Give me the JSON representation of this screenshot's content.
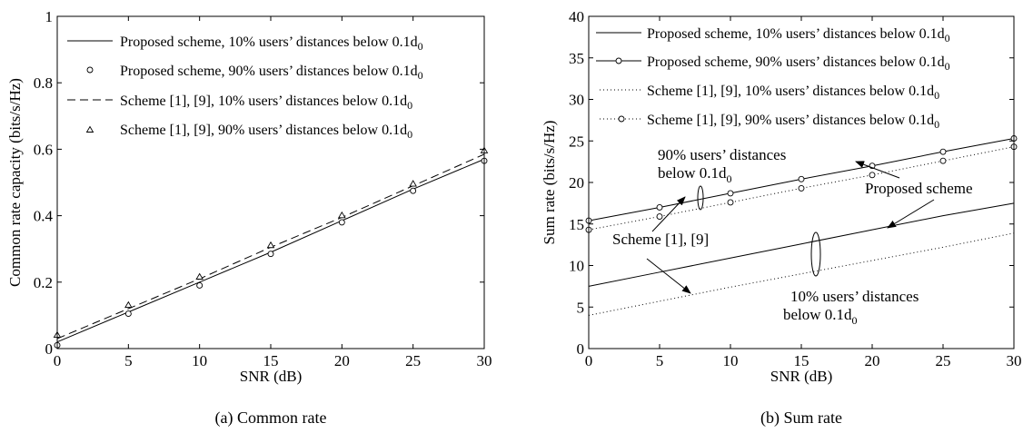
{
  "chart_data": [
    {
      "type": "line",
      "caption": "(a)  Common rate",
      "xlabel": "SNR (dB)",
      "ylabel": "Common rate capacity (bits/s/Hz)",
      "xlim": [
        0,
        30
      ],
      "ylim": [
        0,
        1
      ],
      "xticks": [
        0,
        5,
        10,
        15,
        20,
        25,
        30
      ],
      "yticks": [
        0,
        0.2,
        0.4,
        0.6,
        0.8,
        1
      ],
      "ytick_labels": [
        "0",
        "0.2",
        "0.4",
        "0.6",
        "0.8",
        "1"
      ],
      "grid": false,
      "legend_position": "top-left",
      "x": [
        0,
        5,
        10,
        15,
        20,
        25,
        30
      ],
      "series": [
        {
          "name": "Proposed scheme, 10% users’ distances below 0.1d",
          "sub": "0",
          "style": "solid",
          "marker": "none",
          "values": [
            0.02,
            0.11,
            0.2,
            0.29,
            0.385,
            0.48,
            0.57
          ]
        },
        {
          "name": "Proposed scheme, 90% users’ distances below 0.1d",
          "sub": "0",
          "style": "none",
          "marker": "circle",
          "values": [
            0.01,
            0.105,
            0.19,
            0.285,
            0.38,
            0.475,
            0.565
          ]
        },
        {
          "name": "Scheme [1], [9], 10% users’ distances below 0.1d",
          "sub": "0",
          "style": "dashed",
          "marker": "none",
          "values": [
            0.03,
            0.12,
            0.21,
            0.305,
            0.395,
            0.49,
            0.585
          ]
        },
        {
          "name": "Scheme [1], [9], 90% users’ distances below 0.1d",
          "sub": "0",
          "style": "none",
          "marker": "triangle",
          "values": [
            0.04,
            0.13,
            0.215,
            0.31,
            0.4,
            0.495,
            0.595
          ]
        }
      ]
    },
    {
      "type": "line",
      "caption": "(b)  Sum rate",
      "xlabel": "SNR (dB)",
      "ylabel": "Sum rate (bits/s/Hz)",
      "xlim": [
        0,
        30
      ],
      "ylim": [
        0,
        40
      ],
      "xticks": [
        0,
        5,
        10,
        15,
        20,
        25,
        30
      ],
      "yticks": [
        0,
        5,
        10,
        15,
        20,
        25,
        30,
        35,
        40
      ],
      "ytick_labels": [
        "0",
        "5",
        "10",
        "15",
        "20",
        "25",
        "30",
        "35",
        "40"
      ],
      "grid": false,
      "legend_position": "top-left",
      "x": [
        0,
        5,
        10,
        15,
        20,
        25,
        30
      ],
      "series": [
        {
          "name": "Proposed scheme, 10% users’ distances below 0.1d",
          "sub": "0",
          "style": "solid",
          "marker": "none",
          "values": [
            7.5,
            9.2,
            10.9,
            12.6,
            14.3,
            16.0,
            17.5
          ]
        },
        {
          "name": "Proposed scheme, 90% users’ distances below 0.1d",
          "sub": "0",
          "style": "solid",
          "marker": "circle",
          "values": [
            15.4,
            17.0,
            18.7,
            20.4,
            22.0,
            23.7,
            25.3
          ]
        },
        {
          "name": "Scheme [1], [9], 10% users’ distances below 0.1d",
          "sub": "0",
          "style": "dotted",
          "marker": "none",
          "values": [
            4.0,
            5.7,
            7.4,
            9.0,
            10.6,
            12.2,
            13.9
          ]
        },
        {
          "name": "Scheme [1], [9], 90% users’ distances below 0.1d",
          "sub": "0",
          "style": "dotted",
          "marker": "circle",
          "values": [
            14.3,
            15.9,
            17.6,
            19.3,
            20.9,
            22.6,
            24.3
          ]
        }
      ],
      "annotations": {
        "top_group": {
          "line1": "90% users’ distances",
          "line2": "below 0.1d",
          "sub": "0"
        },
        "proposed": "Proposed scheme",
        "scheme": "Scheme [1], [9]",
        "bottom_group": {
          "line1": "10% users’ distances",
          "line2": "below 0.1d",
          "sub": "0"
        }
      }
    }
  ]
}
